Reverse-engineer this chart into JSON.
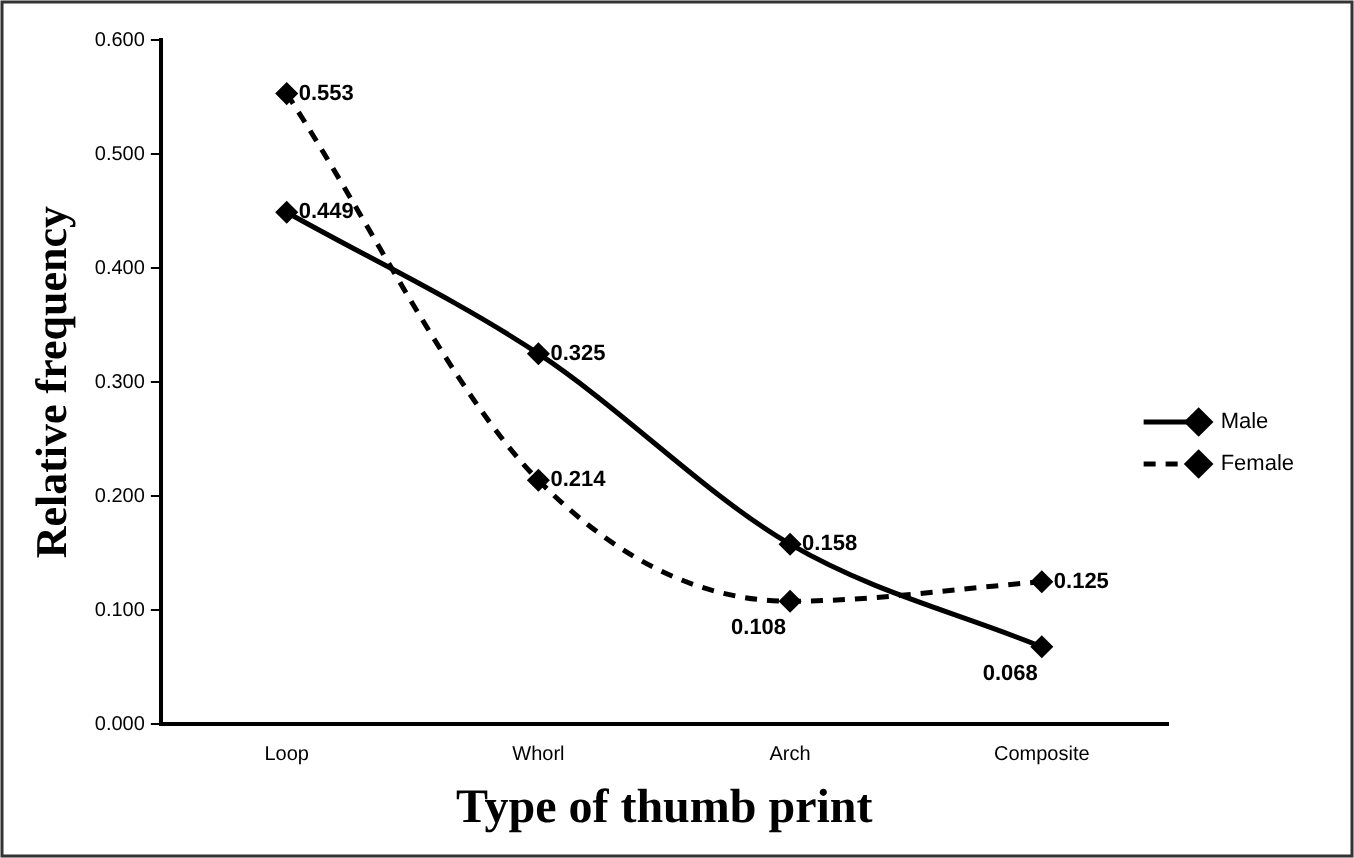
{
  "chart_data": {
    "type": "line",
    "xlabel": "Type of thumb print",
    "ylabel": "Relative frequency",
    "categories": [
      "Loop",
      "Whorl",
      "Arch",
      "Composite"
    ],
    "series": [
      {
        "name": "Male",
        "color": "#000000",
        "values": [
          0.449,
          0.325,
          0.158,
          0.068
        ],
        "line_style": "solid"
      },
      {
        "name": "Female",
        "color": "#000000",
        "values": [
          0.553,
          0.214,
          0.108,
          0.125
        ],
        "line_style": "dashed"
      }
    ],
    "ylim": [
      0,
      0.6
    ],
    "yticks": [
      {
        "value": 0,
        "label": "0.000"
      },
      {
        "value": 0.1,
        "label": "0.100"
      },
      {
        "value": 0.2,
        "label": "0.200"
      },
      {
        "value": 0.3,
        "label": "0.300"
      },
      {
        "value": 0.4,
        "label": "0.400"
      },
      {
        "value": 0.5,
        "label": "0.500"
      },
      {
        "value": 0.6,
        "label": "0.600"
      }
    ],
    "grid": false,
    "legend": "right",
    "marker": "diamond",
    "data_labels": true
  }
}
